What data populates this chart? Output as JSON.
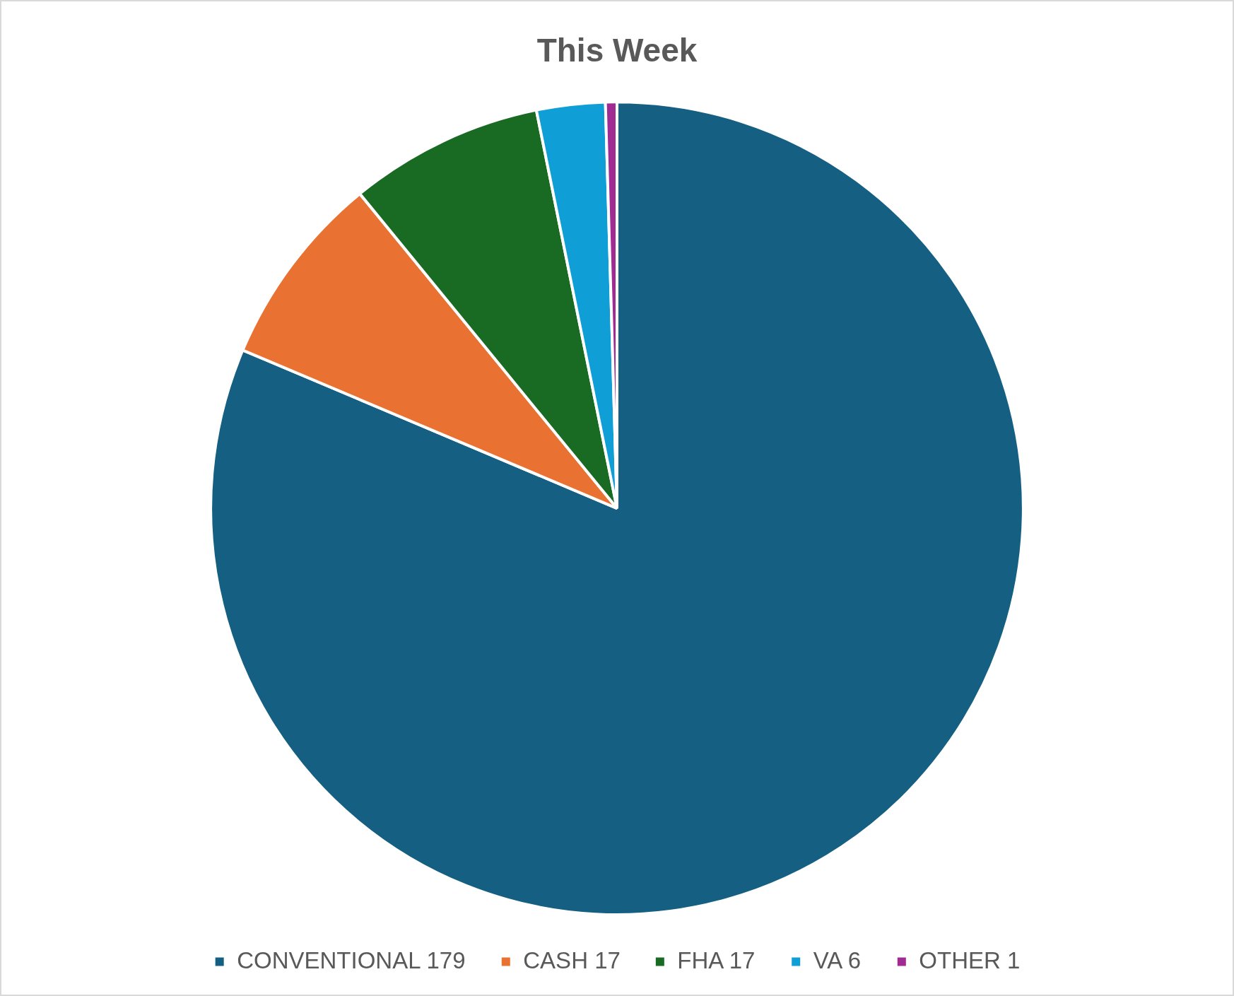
{
  "chart_data": {
    "type": "pie",
    "title": "This Week",
    "categories": [
      "CONVENTIONAL 179",
      "CASH 17",
      "FHA 17",
      "VA 6",
      "OTHER 1"
    ],
    "values": [
      179,
      17,
      17,
      6,
      1
    ],
    "colors": [
      "#156082",
      "#e97132",
      "#196b24",
      "#0f9ed5",
      "#a02b93"
    ],
    "legend": "bottom"
  }
}
